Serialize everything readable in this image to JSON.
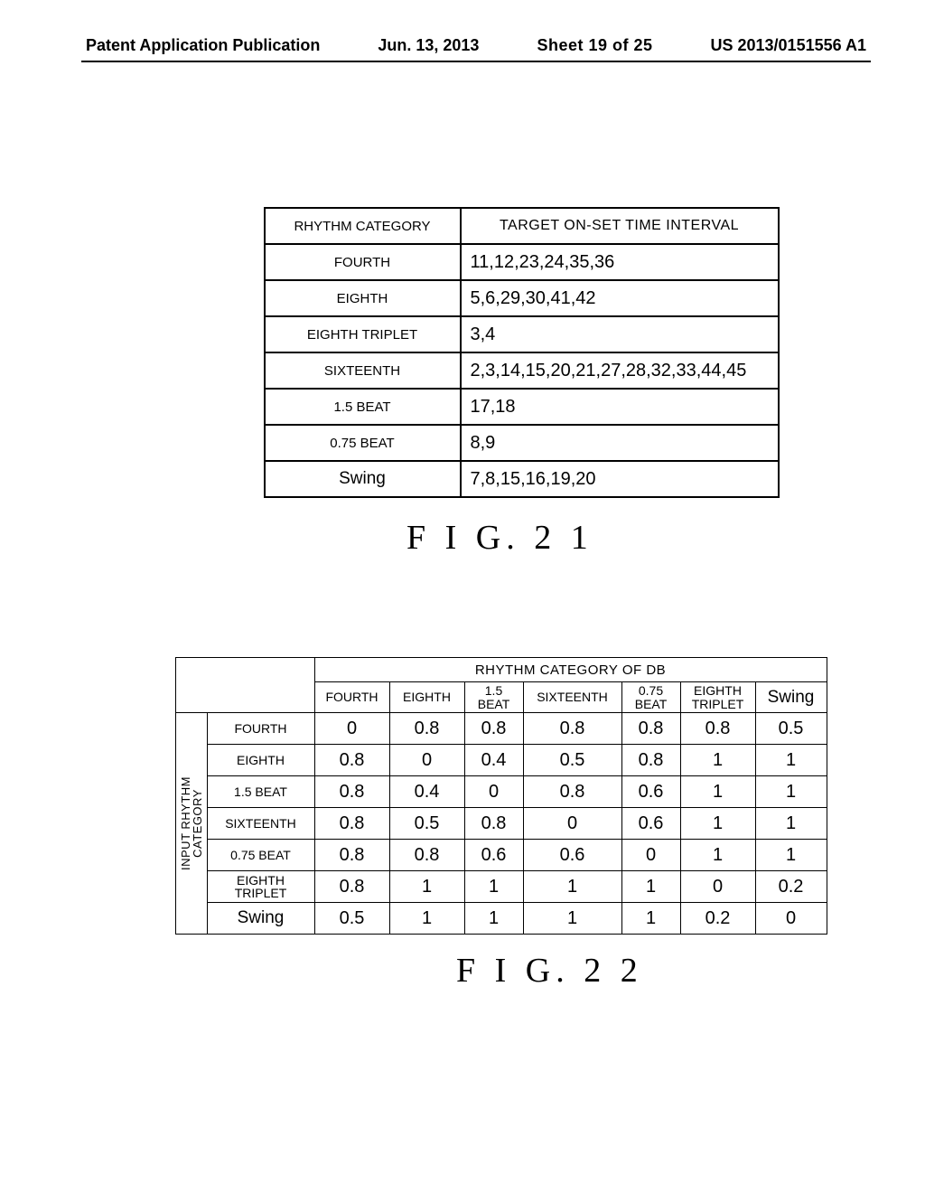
{
  "header": {
    "left": "Patent Application Publication",
    "date": "Jun. 13, 2013",
    "sheet": "Sheet 19 of 25",
    "pubno": "US 2013/0151556 A1"
  },
  "table1": {
    "header_cat": "RHYTHM CATEGORY",
    "header_tgt": "TARGET ON-SET TIME INTERVAL",
    "rows": [
      {
        "cat": "FOURTH",
        "val": "11,12,23,24,35,36"
      },
      {
        "cat": "EIGHTH",
        "val": "5,6,29,30,41,42"
      },
      {
        "cat": "EIGHTH TRIPLET",
        "val": "3,4"
      },
      {
        "cat": "SIXTEENTH",
        "val": "2,3,14,15,20,21,27,28,32,33,44,45"
      },
      {
        "cat": "1.5 BEAT",
        "val": "17,18"
      },
      {
        "cat": "0.75 BEAT",
        "val": "8,9"
      },
      {
        "cat": "Swing",
        "val": "7,8,15,16,19,20"
      }
    ],
    "fig_label": "F I G.   2 1"
  },
  "table2": {
    "db_header": "RHYTHM CATEGORY OF DB",
    "side_label": "INPUT RHYTHM\nCATEGORY",
    "col_headers": [
      "FOURTH",
      "EIGHTH",
      "1.5\nBEAT",
      "SIXTEENTH",
      "0.75\nBEAT",
      "EIGHTH\nTRIPLET",
      "Swing"
    ],
    "row_headers": [
      "FOURTH",
      "EIGHTH",
      "1.5 BEAT",
      "SIXTEENTH",
      "0.75 BEAT",
      "EIGHTH\nTRIPLET",
      "Swing"
    ],
    "values": [
      [
        "0",
        "0.8",
        "0.8",
        "0.8",
        "0.8",
        "0.8",
        "0.5"
      ],
      [
        "0.8",
        "0",
        "0.4",
        "0.5",
        "0.8",
        "1",
        "1"
      ],
      [
        "0.8",
        "0.4",
        "0",
        "0.8",
        "0.6",
        "1",
        "1"
      ],
      [
        "0.8",
        "0.5",
        "0.8",
        "0",
        "0.6",
        "1",
        "1"
      ],
      [
        "0.8",
        "0.8",
        "0.6",
        "0.6",
        "0",
        "1",
        "1"
      ],
      [
        "0.8",
        "1",
        "1",
        "1",
        "1",
        "0",
        "0.2"
      ],
      [
        "0.5",
        "1",
        "1",
        "1",
        "1",
        "0.2",
        "0"
      ]
    ],
    "fig_label": "F I G.   2 2"
  }
}
